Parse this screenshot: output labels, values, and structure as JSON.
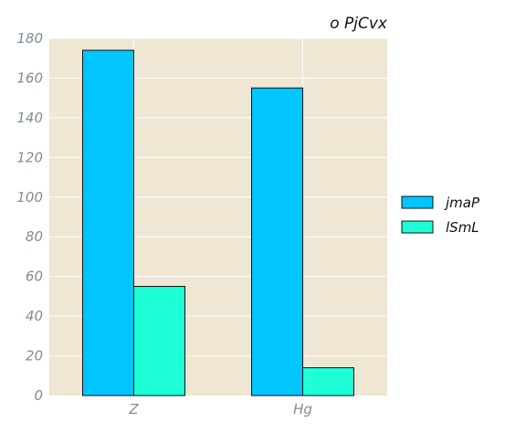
{
  "chart_data": {
    "type": "bar",
    "title": "o PjCvx",
    "xlabel": "",
    "ylabel": "",
    "categories": [
      "Z",
      "Hg"
    ],
    "series": [
      {
        "name": "jmaP",
        "values": [
          174,
          155
        ],
        "color": "#00c5ff"
      },
      {
        "name": "lSmL",
        "values": [
          55,
          14
        ],
        "color": "#1effd7"
      }
    ],
    "ylim": [
      0,
      180
    ],
    "yticks": [
      0,
      20,
      40,
      60,
      80,
      100,
      120,
      140,
      160,
      180
    ],
    "grid": true,
    "legend_position": "right",
    "colors": {
      "plot_background": "#efe6d3",
      "grid": "#ffffff",
      "bar_edge": "#111111"
    }
  }
}
